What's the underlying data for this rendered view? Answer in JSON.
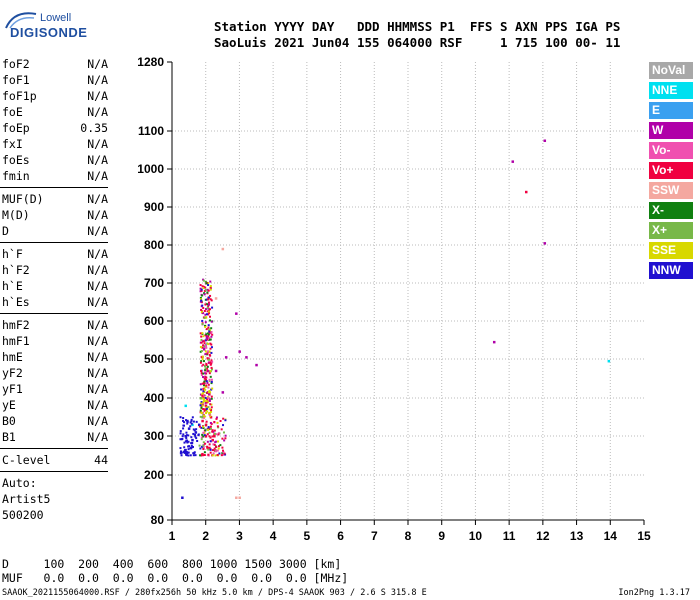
{
  "logo": {
    "line1": "Lowell",
    "line2": "DIGISONDE"
  },
  "header": {
    "line1": "Station YYYY DAY   DDD HHMMSS P1  FFS S AXN PPS IGA PS",
    "line2": "SaoLuis 2021 Jun04 155 064000 RSF     1 715 100 00- 11"
  },
  "sidebar": {
    "group1": [
      {
        "key": "foF2",
        "value": "N/A"
      },
      {
        "key": "foF1",
        "value": "N/A"
      },
      {
        "key": "foF1p",
        "value": "N/A"
      },
      {
        "key": "foE",
        "value": "N/A"
      },
      {
        "key": "foEp",
        "value": "0.35"
      },
      {
        "key": "fxI",
        "value": "N/A"
      },
      {
        "key": "foEs",
        "value": "N/A"
      },
      {
        "key": "fmin",
        "value": "N/A"
      }
    ],
    "group2": [
      {
        "key": "MUF(D)",
        "value": "N/A"
      },
      {
        "key": "M(D)",
        "value": "N/A"
      },
      {
        "key": "D",
        "value": "N/A"
      }
    ],
    "group3": [
      {
        "key": "h`F",
        "value": "N/A"
      },
      {
        "key": "h`F2",
        "value": "N/A"
      },
      {
        "key": "h`E",
        "value": "N/A"
      },
      {
        "key": "h`Es",
        "value": "N/A"
      }
    ],
    "group4": [
      {
        "key": "hmF2",
        "value": "N/A"
      },
      {
        "key": "hmF1",
        "value": "N/A"
      },
      {
        "key": "hmE",
        "value": "N/A"
      },
      {
        "key": "yF2",
        "value": "N/A"
      },
      {
        "key": "yF1",
        "value": "N/A"
      },
      {
        "key": "yE",
        "value": "N/A"
      },
      {
        "key": "B0",
        "value": "N/A"
      },
      {
        "key": "B1",
        "value": "N/A"
      }
    ],
    "clevel": {
      "key": "C-level",
      "value": "44"
    },
    "auto": [
      "Auto:",
      "Artist5",
      "500200"
    ]
  },
  "legend": [
    {
      "label": "NoVal",
      "color": "#a8a8a8"
    },
    {
      "label": "NNE",
      "color": "#00e0f0"
    },
    {
      "label": "E",
      "color": "#3aa0f0"
    },
    {
      "label": "W",
      "color": "#b000a8"
    },
    {
      "label": "Vo-",
      "color": "#f050b0"
    },
    {
      "label": "Vo+",
      "color": "#f00040"
    },
    {
      "label": "SSW",
      "color": "#f4a8a0"
    },
    {
      "label": "X-",
      "color": "#108010"
    },
    {
      "label": "X+",
      "color": "#78b848"
    },
    {
      "label": "SSE",
      "color": "#d8d800"
    },
    {
      "label": "NNW",
      "color": "#2010d0"
    }
  ],
  "bottom": {
    "line1": "D     100  200  400  600  800 1000 1500 3000 [km]",
    "line2": "MUF   0.0  0.0  0.0  0.0  0.0  0.0  0.0  0.0 [MHz]"
  },
  "footer": {
    "left": "SAAOK_2021155064000.RSF / 280fx256h 50 kHz 5.0 km / DPS-4 SAAOK 903 / 2.6 S 315.8 E",
    "right": "Ion2Png 1.3.17"
  },
  "chart_data": {
    "type": "scatter",
    "xlabel": "",
    "ylabel": "",
    "xlim": [
      1,
      15
    ],
    "ylim": [
      80,
      1280
    ],
    "x_ticks": [
      1,
      2,
      3,
      4,
      5,
      6,
      7,
      8,
      9,
      10,
      11,
      12,
      13,
      14,
      15
    ],
    "y_ticks": [
      80,
      200,
      300,
      400,
      500,
      600,
      700,
      800,
      900,
      1000,
      1100,
      1280
    ],
    "grid": true,
    "series": [
      {
        "name": "NNE",
        "color": "#00e0f0",
        "points": [
          [
            13.95,
            495
          ],
          [
            1.4,
            380
          ],
          [
            1.6,
            330
          ]
        ]
      },
      {
        "name": "W",
        "color": "#b000a8",
        "points": [
          [
            12.05,
            1075
          ],
          [
            12.05,
            805
          ],
          [
            11.1,
            1020
          ],
          [
            10.55,
            545
          ],
          [
            2.9,
            620
          ],
          [
            3.0,
            520
          ],
          [
            3.2,
            505
          ],
          [
            3.5,
            485
          ],
          [
            2.6,
            505
          ],
          [
            2.3,
            470
          ],
          [
            2.5,
            415
          ]
        ]
      },
      {
        "name": "Vo+",
        "color": "#f00040",
        "points": [
          [
            11.5,
            940
          ],
          [
            2.0,
            300
          ],
          [
            2.1,
            320
          ],
          [
            2.2,
            290
          ],
          [
            1.9,
            340
          ],
          [
            2.05,
            270
          ],
          [
            2.15,
            350
          ],
          [
            2.0,
            380
          ],
          [
            2.1,
            410
          ],
          [
            1.95,
            440
          ],
          [
            2.05,
            470
          ],
          [
            2.25,
            300
          ]
        ]
      },
      {
        "name": "NNW",
        "color": "#2010d0",
        "points": [
          [
            1.3,
            140
          ],
          [
            1.4,
            300
          ],
          [
            1.5,
            320
          ],
          [
            1.6,
            290
          ],
          [
            1.7,
            310
          ],
          [
            1.45,
            340
          ],
          [
            1.55,
            270
          ],
          [
            1.8,
            330
          ],
          [
            1.35,
            260
          ]
        ]
      },
      {
        "name": "SSE",
        "color": "#d8d800",
        "points": [
          [
            2.0,
            370
          ],
          [
            2.1,
            360
          ],
          [
            2.05,
            390
          ],
          [
            1.95,
            400
          ],
          [
            2.0,
            430
          ],
          [
            2.1,
            520
          ],
          [
            2.0,
            610
          ],
          [
            2.05,
            700
          ]
        ]
      },
      {
        "name": "SSW",
        "color": "#f4a8a0",
        "points": [
          [
            2.9,
            140
          ],
          [
            3.0,
            140
          ],
          [
            2.5,
            790
          ],
          [
            2.3,
            660
          ]
        ]
      },
      {
        "name": "X+",
        "color": "#78b848",
        "points": [
          [
            1.9,
            350
          ],
          [
            2.0,
            330
          ],
          [
            1.85,
            400
          ]
        ]
      }
    ]
  }
}
